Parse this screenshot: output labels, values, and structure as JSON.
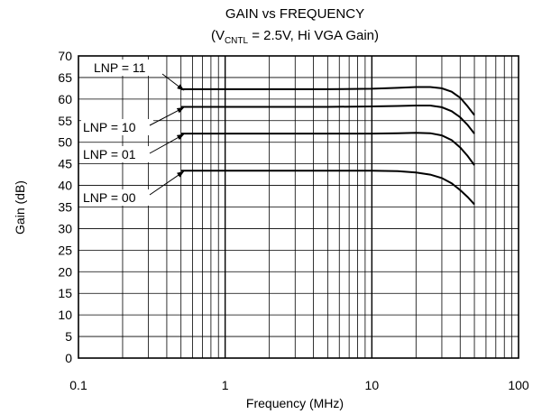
{
  "chart_data": {
    "type": "line",
    "title": "GAIN vs FREQUENCY",
    "subtitle": {
      "prefix": "(V",
      "subscript": "CNTL",
      "suffix": " = 2.5V, Hi VGA Gain)"
    },
    "xlabel": "Frequency (MHz)",
    "ylabel": "Gain (dB)",
    "xscale": "log",
    "xlim": [
      0.1,
      100
    ],
    "ylim": [
      0,
      70
    ],
    "grid": true,
    "x_ticks": [
      {
        "value": 0.1,
        "label": "0.1"
      },
      {
        "value": 1,
        "label": "1"
      },
      {
        "value": 10,
        "label": "10"
      },
      {
        "value": 100,
        "label": "100"
      }
    ],
    "y_ticks": [
      0,
      5,
      10,
      15,
      20,
      25,
      30,
      35,
      40,
      45,
      50,
      55,
      60,
      65,
      70
    ],
    "series": [
      {
        "name": "LNP = 11",
        "x": [
          0.5,
          1,
          2,
          5,
          10,
          15,
          20,
          25,
          30,
          35,
          40,
          45,
          50
        ],
        "y": [
          62.3,
          62.3,
          62.3,
          62.3,
          62.4,
          62.6,
          62.8,
          62.8,
          62.5,
          61.7,
          60.3,
          58.3,
          56.3
        ]
      },
      {
        "name": "LNP = 10",
        "x": [
          0.5,
          1,
          2,
          5,
          10,
          15,
          20,
          25,
          30,
          35,
          40,
          45,
          50
        ],
        "y": [
          58.2,
          58.2,
          58.2,
          58.2,
          58.3,
          58.4,
          58.5,
          58.5,
          58.1,
          57.2,
          55.8,
          54.0,
          52.0
        ]
      },
      {
        "name": "LNP = 01",
        "x": [
          0.5,
          1,
          2,
          5,
          10,
          15,
          20,
          25,
          30,
          35,
          40,
          45,
          50
        ],
        "y": [
          52.0,
          52.0,
          52.0,
          52.0,
          52.0,
          52.1,
          52.2,
          52.1,
          51.6,
          50.5,
          48.8,
          46.8,
          44.7
        ]
      },
      {
        "name": "LNP = 00",
        "x": [
          0.5,
          1,
          2,
          5,
          10,
          15,
          20,
          25,
          30,
          35,
          40,
          45,
          50
        ],
        "y": [
          43.4,
          43.4,
          43.4,
          43.4,
          43.4,
          43.3,
          43.0,
          42.5,
          41.7,
          40.5,
          38.9,
          37.3,
          35.6
        ]
      }
    ],
    "annotations": [
      {
        "text": "LNP = 11",
        "series": 0
      },
      {
        "text": "LNP = 10",
        "series": 1
      },
      {
        "text": "LNP = 01",
        "series": 2
      },
      {
        "text": "LNP = 00",
        "series": 3
      }
    ]
  }
}
